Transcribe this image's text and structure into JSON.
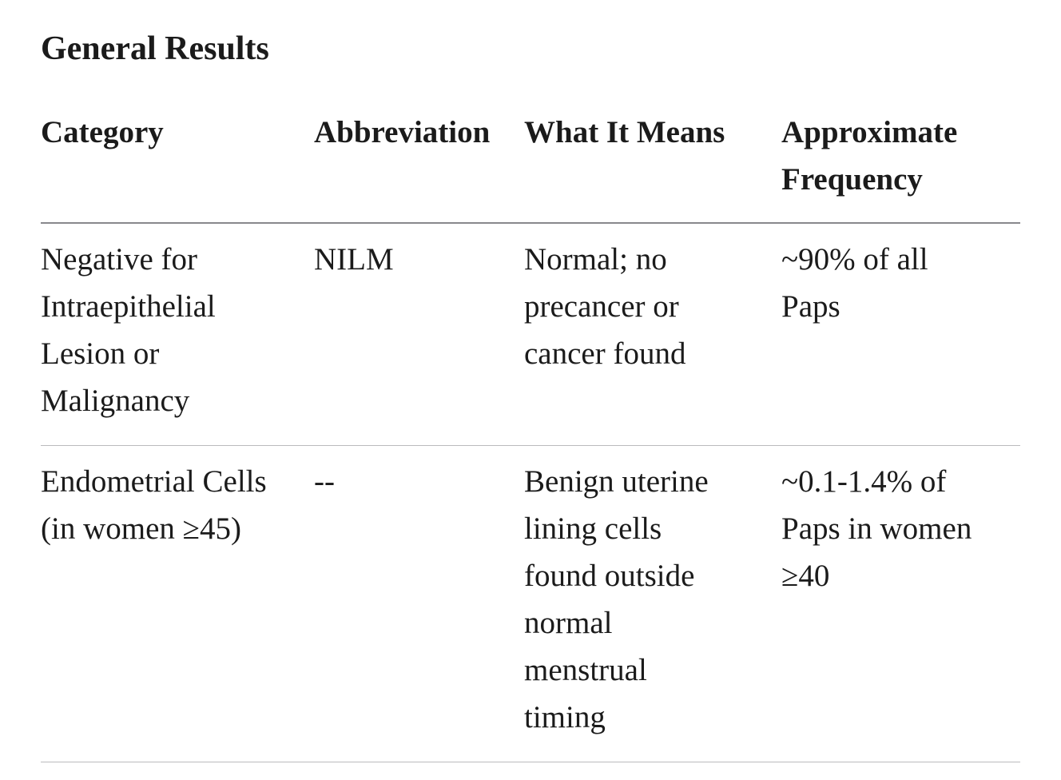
{
  "section": {
    "title": "General Results"
  },
  "table": {
    "columns": [
      "Category",
      "Abbreviation",
      "What It Means",
      "Approximate\nFrequency"
    ],
    "rows": [
      {
        "category": "Negative for\nIntraepithelial\nLesion or\nMalignancy",
        "abbreviation": "NILM",
        "meaning": "Normal; no\nprecancer or\ncancer found",
        "frequency": "~90% of all\nPaps"
      },
      {
        "category": "Endometrial Cells\n(in women ≥45)",
        "abbreviation": "--",
        "meaning": "Benign uterine\nlining cells\nfound outside\nnormal\nmenstrual\ntiming",
        "frequency": "~0.1-1.4% of\nPaps in women\n≥40"
      }
    ]
  },
  "colors": {
    "text": "#1b1b1b",
    "header_rule": "#88888c",
    "row_rule": "#bababd",
    "background": "#ffffff"
  }
}
